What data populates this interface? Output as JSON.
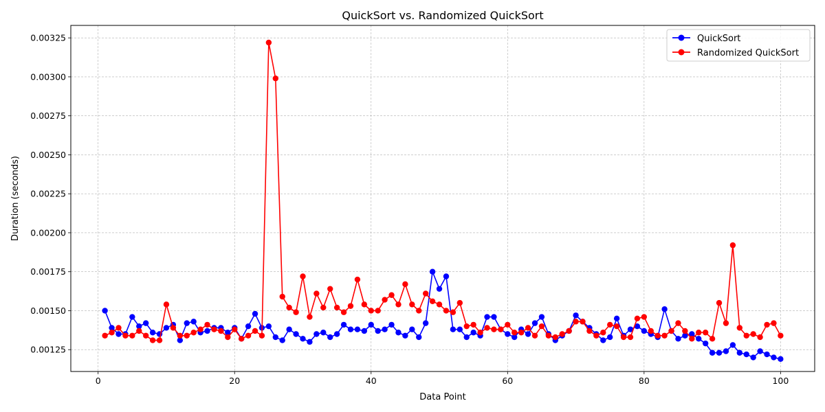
{
  "chart_data": {
    "type": "line",
    "title": "QuickSort vs. Randomized QuickSort",
    "xlabel": "Data Point",
    "ylabel": "Duration (seconds)",
    "xlim": [
      -4,
      105
    ],
    "ylim": [
      0.00111,
      0.00333
    ],
    "xticks": [
      0,
      20,
      40,
      60,
      80,
      100
    ],
    "yticks": [
      0.00125,
      0.0015,
      0.00175,
      0.002,
      0.00225,
      0.0025,
      0.00275,
      0.003,
      0.00325
    ],
    "ytick_labels": [
      "0.00125",
      "0.00150",
      "0.00175",
      "0.00200",
      "0.00225",
      "0.00250",
      "0.00275",
      "0.00300",
      "0.00325"
    ],
    "grid": true,
    "legend_position": "top-right",
    "series": [
      {
        "name": "QuickSort",
        "color": "#0000ff",
        "x": [
          1,
          2,
          3,
          4,
          5,
          6,
          7,
          8,
          9,
          10,
          11,
          12,
          13,
          14,
          15,
          16,
          17,
          18,
          19,
          20,
          21,
          22,
          23,
          24,
          25,
          26,
          27,
          28,
          29,
          30,
          31,
          32,
          33,
          34,
          35,
          36,
          37,
          38,
          39,
          40,
          41,
          42,
          43,
          44,
          45,
          46,
          47,
          48,
          49,
          50,
          51,
          52,
          53,
          54,
          55,
          56,
          57,
          58,
          59,
          60,
          61,
          62,
          63,
          64,
          65,
          66,
          67,
          68,
          69,
          70,
          71,
          72,
          73,
          74,
          75,
          76,
          77,
          78,
          79,
          80,
          81,
          82,
          83,
          84,
          85,
          86,
          87,
          88,
          89,
          90,
          91,
          92,
          93,
          94,
          95,
          96,
          97,
          98,
          99,
          100
        ],
        "values": [
          0.0015,
          0.00139,
          0.00135,
          0.00135,
          0.00146,
          0.0014,
          0.00142,
          0.00136,
          0.00135,
          0.00139,
          0.00141,
          0.00131,
          0.00142,
          0.00143,
          0.00136,
          0.00137,
          0.00139,
          0.00139,
          0.00136,
          0.00139,
          0.00132,
          0.0014,
          0.00148,
          0.00139,
          0.0014,
          0.00133,
          0.00131,
          0.00138,
          0.00135,
          0.00132,
          0.0013,
          0.00135,
          0.00136,
          0.00133,
          0.00135,
          0.00141,
          0.00138,
          0.00138,
          0.00137,
          0.00141,
          0.00137,
          0.00138,
          0.00141,
          0.00136,
          0.00134,
          0.00138,
          0.00133,
          0.00142,
          0.00175,
          0.00164,
          0.00172,
          0.00138,
          0.00138,
          0.00133,
          0.00136,
          0.00134,
          0.00146,
          0.00146,
          0.00138,
          0.00135,
          0.00133,
          0.00138,
          0.00135,
          0.00142,
          0.00146,
          0.00135,
          0.00131,
          0.00134,
          0.00137,
          0.00147,
          0.00143,
          0.00139,
          0.00135,
          0.00131,
          0.00133,
          0.00145,
          0.00134,
          0.00138,
          0.0014,
          0.00137,
          0.00135,
          0.00133,
          0.00151,
          0.00137,
          0.00132,
          0.00134,
          0.00135,
          0.00132,
          0.00129,
          0.00123,
          0.00123,
          0.00124,
          0.00128,
          0.00123,
          0.00122,
          0.0012,
          0.00124,
          0.00122,
          0.0012,
          0.00119
        ]
      },
      {
        "name": "Randomized QuickSort",
        "color": "#ff0000",
        "x": [
          1,
          2,
          3,
          4,
          5,
          6,
          7,
          8,
          9,
          10,
          11,
          12,
          13,
          14,
          15,
          16,
          17,
          18,
          19,
          20,
          21,
          22,
          23,
          24,
          25,
          26,
          27,
          28,
          29,
          30,
          31,
          32,
          33,
          34,
          35,
          36,
          37,
          38,
          39,
          40,
          41,
          42,
          43,
          44,
          45,
          46,
          47,
          48,
          49,
          50,
          51,
          52,
          53,
          54,
          55,
          56,
          57,
          58,
          59,
          60,
          61,
          62,
          63,
          64,
          65,
          66,
          67,
          68,
          69,
          70,
          71,
          72,
          73,
          74,
          75,
          76,
          77,
          78,
          79,
          80,
          81,
          82,
          83,
          84,
          85,
          86,
          87,
          88,
          89,
          90,
          91,
          92,
          93,
          94,
          95,
          96,
          97,
          98,
          99,
          100
        ],
        "values": [
          0.00134,
          0.00136,
          0.00139,
          0.00134,
          0.00134,
          0.00137,
          0.00134,
          0.00131,
          0.00131,
          0.00154,
          0.00139,
          0.00134,
          0.00134,
          0.00136,
          0.00138,
          0.00141,
          0.00138,
          0.00137,
          0.00133,
          0.00138,
          0.00132,
          0.00134,
          0.00137,
          0.00134,
          0.00322,
          0.00299,
          0.00159,
          0.00152,
          0.00149,
          0.00172,
          0.00146,
          0.00161,
          0.00152,
          0.00164,
          0.00152,
          0.00149,
          0.00153,
          0.0017,
          0.00154,
          0.0015,
          0.0015,
          0.00157,
          0.0016,
          0.00154,
          0.00167,
          0.00154,
          0.0015,
          0.00161,
          0.00156,
          0.00154,
          0.0015,
          0.00149,
          0.00155,
          0.0014,
          0.00141,
          0.00136,
          0.00139,
          0.00138,
          0.00138,
          0.00141,
          0.00136,
          0.00136,
          0.00139,
          0.00134,
          0.0014,
          0.00134,
          0.00133,
          0.00135,
          0.00137,
          0.00143,
          0.00143,
          0.00137,
          0.00134,
          0.00136,
          0.00141,
          0.0014,
          0.00133,
          0.00133,
          0.00145,
          0.00146,
          0.00137,
          0.00134,
          0.00134,
          0.00137,
          0.00142,
          0.00137,
          0.00132,
          0.00136,
          0.00136,
          0.00132,
          0.00155,
          0.00142,
          0.00192,
          0.00139,
          0.00134,
          0.00135,
          0.00133,
          0.00141,
          0.00142,
          0.00134
        ]
      }
    ]
  }
}
